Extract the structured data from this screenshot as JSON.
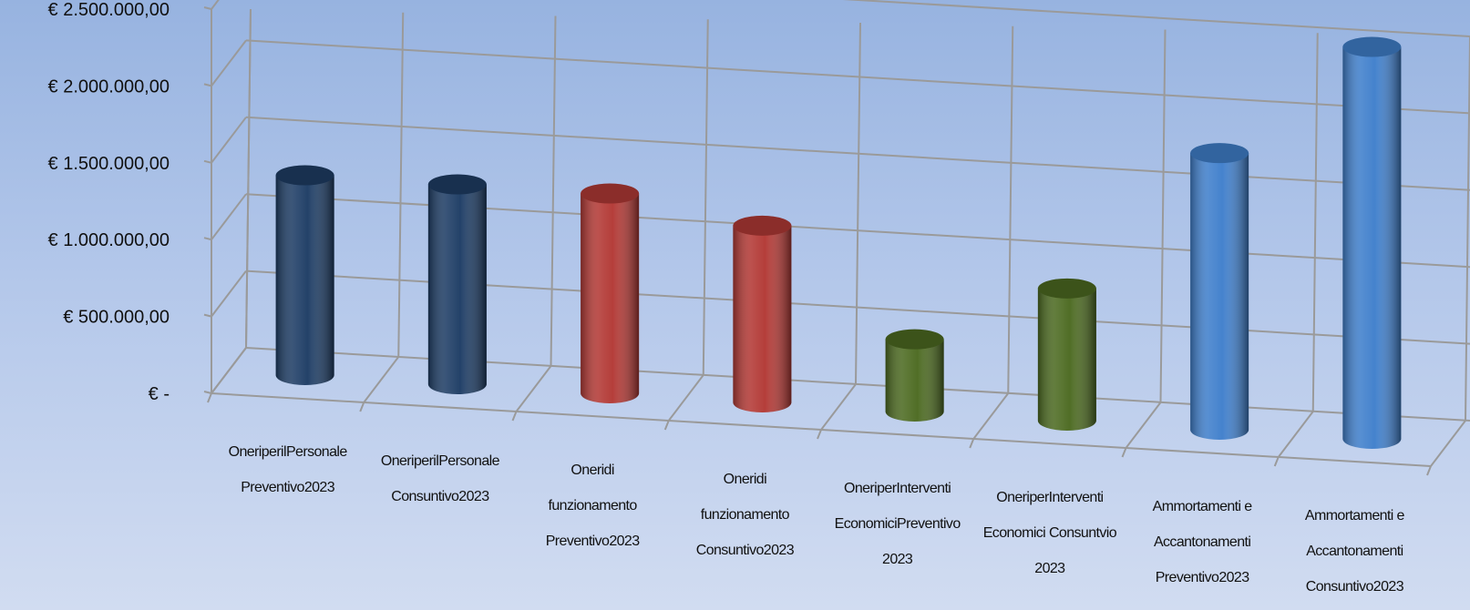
{
  "chart_data": {
    "type": "bar",
    "style": "3d-cylinder",
    "title": "",
    "xlabel": "",
    "ylabel": "",
    "ylim": [
      0,
      2500000
    ],
    "yticks": [
      0,
      500000,
      1000000,
      1500000,
      2000000,
      2500000
    ],
    "ytick_labels": [
      "€ -",
      "€ 500.000,00",
      "€ 1.000.000,00",
      "€ 1.500.000,00",
      "€ 2.000.000,00",
      "€ 2.500.000,00"
    ],
    "grid": true,
    "legend": "none",
    "categories": [
      [
        "OneriperilPersonale",
        "Preventivo2023"
      ],
      [
        "OneriperilPersonale",
        "Consuntivo2023"
      ],
      [
        "Oneridi",
        "funzionamento",
        "Preventivo2023"
      ],
      [
        "Oneridi",
        "funzionamento",
        "Consuntivo2023"
      ],
      [
        "OneriperInterventi",
        "EconomiciPreventivo",
        "2023"
      ],
      [
        "OneriperInterventi",
        "Economici Consuntvio",
        "2023"
      ],
      [
        "Ammortamenti e",
        "Accantonamenti",
        "Preventivo2023"
      ],
      [
        "Ammortamenti e",
        "Accantonamenti",
        "Consuntivo2023"
      ]
    ],
    "values": [
      1300000,
      1300000,
      1300000,
      1150000,
      470000,
      860000,
      1800000,
      2550000
    ],
    "colors": [
      "#1f3e66",
      "#1f3e66",
      "#b33a36",
      "#b33a36",
      "#4d6b22",
      "#4d6b22",
      "#4180cc",
      "#4180cc"
    ]
  }
}
